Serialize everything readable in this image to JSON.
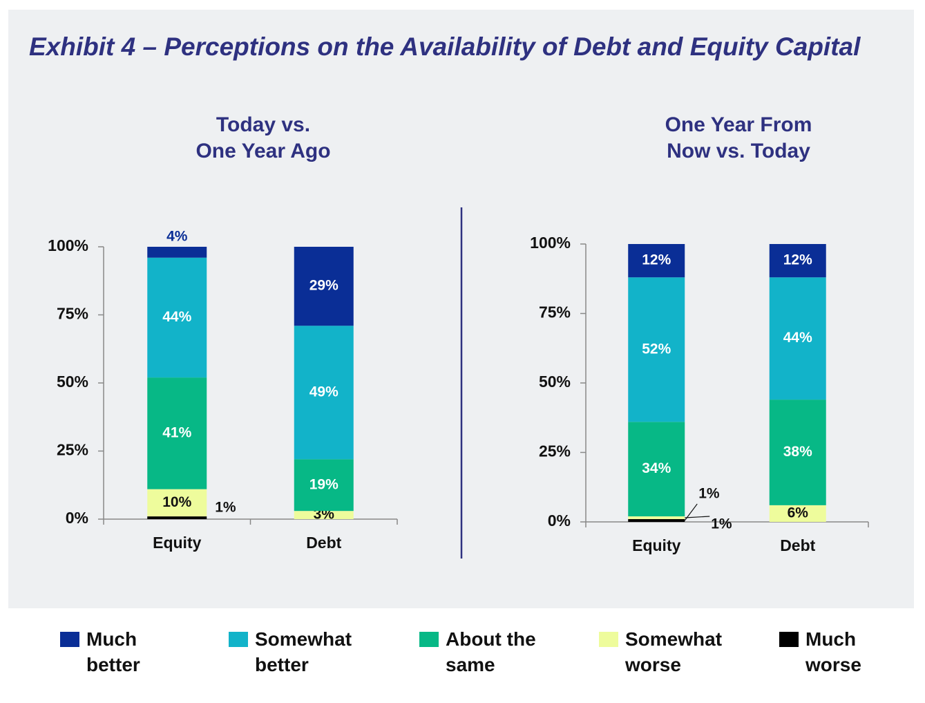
{
  "title": "Exhibit 4 – Perceptions on the Availability of Debt and Equity Capital",
  "chart_data": [
    {
      "type": "stacked_bar",
      "title": [
        "Today vs.",
        "One Year Ago"
      ],
      "categories": [
        "Equity",
        "Debt"
      ],
      "series": [
        {
          "name": "Much worse",
          "color": "#000000",
          "values": [
            1,
            0
          ],
          "value_labels": [
            "1%",
            null
          ]
        },
        {
          "name": "Somewhat worse",
          "color": "#eefc9c",
          "values": [
            10,
            3
          ],
          "value_labels": [
            "10%",
            "3%"
          ]
        },
        {
          "name": "About the same",
          "color": "#07b886",
          "values": [
            41,
            19
          ],
          "value_labels": [
            "41%",
            "19%"
          ]
        },
        {
          "name": "Somewhat better",
          "color": "#12b3c9",
          "values": [
            44,
            49
          ],
          "value_labels": [
            "44%",
            "49%"
          ]
        },
        {
          "name": "Much better",
          "color": "#0a2e96",
          "values": [
            4,
            29
          ],
          "value_labels": [
            "4%",
            "29%"
          ]
        }
      ],
      "ylim": [
        0,
        100
      ],
      "yticks": [
        {
          "value": 0,
          "label": "0%"
        },
        {
          "value": 25,
          "label": "25%"
        },
        {
          "value": 50,
          "label": "50%"
        },
        {
          "value": 75,
          "label": "75%"
        },
        {
          "value": 100,
          "label": "100%"
        }
      ]
    },
    {
      "type": "stacked_bar",
      "title": [
        "One Year From",
        "Now vs. Today"
      ],
      "categories": [
        "Equity",
        "Debt"
      ],
      "series": [
        {
          "color": "#000000",
          "values": [
            1,
            0
          ],
          "value_labels": [
            "1%",
            null
          ]
        },
        {
          "color": "#eefc9c",
          "values": [
            1,
            6
          ],
          "value_labels": [
            "1%",
            "6%"
          ]
        },
        {
          "color": "#07b886",
          "values": [
            34,
            38
          ],
          "value_labels": [
            "34%",
            "38%"
          ]
        },
        {
          "color": "#12b3c9",
          "values": [
            52,
            44
          ],
          "value_labels": [
            "52%",
            "44%"
          ]
        },
        {
          "color": "#0a2e96",
          "values": [
            12,
            12
          ],
          "value_labels": [
            "12%",
            "12%"
          ]
        }
      ],
      "ylim": [
        0,
        100
      ],
      "yticks": [
        {
          "value": 0,
          "label": "0%"
        },
        {
          "value": 25,
          "label": "25%"
        },
        {
          "value": 50,
          "label": "50%"
        },
        {
          "value": 75,
          "label": "75%"
        },
        {
          "value": 100,
          "label": "100%"
        }
      ]
    }
  ]
}
